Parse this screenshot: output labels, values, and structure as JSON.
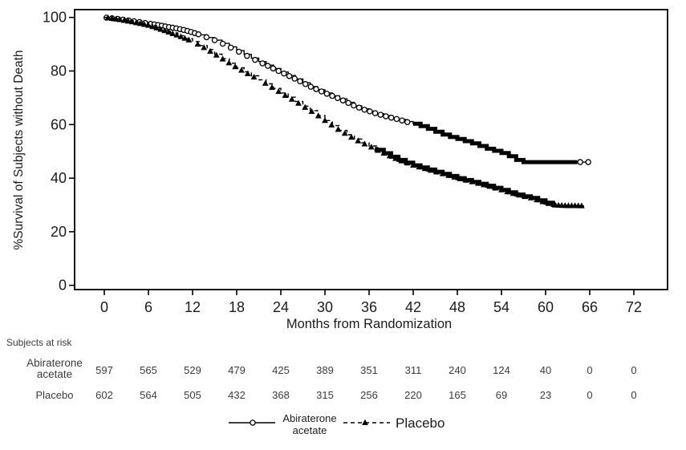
{
  "chart_data": {
    "type": "line",
    "subtype": "kaplan-meier-survival",
    "title": "",
    "xlabel": "Months from Randomization",
    "ylabel": "%Survival of Subjects without Death",
    "xlim": [
      0,
      72
    ],
    "ylim": [
      0,
      100
    ],
    "xticks": [
      0,
      6,
      12,
      18,
      24,
      30,
      36,
      42,
      48,
      54,
      60,
      66,
      72
    ],
    "yticks": [
      0,
      20,
      40,
      60,
      80,
      100
    ],
    "grid": false,
    "legend_position": "bottom",
    "colors": {
      "stroke": "#000000",
      "background": "#ffffff"
    },
    "series": [
      {
        "name": "Abiraterone acetate",
        "label_lines": [
          "Abiraterone",
          "acetate"
        ],
        "line_style": "solid",
        "marker": "open-circle",
        "points": [
          [
            0,
            100
          ],
          [
            1,
            99.7
          ],
          [
            2,
            99.4
          ],
          [
            3,
            99
          ],
          [
            4,
            98.6
          ],
          [
            5,
            98.2
          ],
          [
            6,
            97.7
          ],
          [
            7,
            97.3
          ],
          [
            8,
            96.8
          ],
          [
            9,
            96.3
          ],
          [
            10,
            95.8
          ],
          [
            11,
            95.2
          ],
          [
            12,
            94.4
          ],
          [
            13,
            93.5
          ],
          [
            14,
            92.5
          ],
          [
            15,
            91.5
          ],
          [
            16,
            90.3
          ],
          [
            17,
            89
          ],
          [
            18,
            87.6
          ],
          [
            19,
            86.2
          ],
          [
            20,
            84.8
          ],
          [
            21,
            83.5
          ],
          [
            22,
            82.2
          ],
          [
            23,
            80.9
          ],
          [
            24,
            79.6
          ],
          [
            25,
            78.3
          ],
          [
            26,
            77
          ],
          [
            27,
            75.6
          ],
          [
            28,
            74.2
          ],
          [
            29,
            73
          ],
          [
            30,
            71.8
          ],
          [
            31,
            70.7
          ],
          [
            32,
            69.6
          ],
          [
            33,
            68.3
          ],
          [
            34,
            67
          ],
          [
            35,
            65.9
          ],
          [
            36,
            65
          ],
          [
            37,
            64.1
          ],
          [
            38,
            63.3
          ],
          [
            39,
            62.6
          ],
          [
            40,
            61.9
          ],
          [
            41,
            61.1
          ],
          [
            42,
            60.3
          ],
          [
            43,
            59.4
          ],
          [
            44,
            58.4
          ],
          [
            45,
            57.3
          ],
          [
            46,
            56.3
          ],
          [
            47,
            55.4
          ],
          [
            48,
            54.6
          ],
          [
            49,
            53.8
          ],
          [
            50,
            53
          ],
          [
            51,
            52
          ],
          [
            52,
            51
          ],
          [
            53,
            50.2
          ],
          [
            54,
            49.4
          ],
          [
            55,
            48.2
          ],
          [
            56,
            46.8
          ],
          [
            57,
            46
          ],
          [
            65.8,
            46
          ]
        ],
        "marker_runs": [
          [
            0.3,
            6.3,
            0.75
          ],
          [
            6.8,
            13,
            0.5
          ],
          [
            13.9,
            20.5,
            1.1
          ],
          [
            21.5,
            41.6,
            0.73
          ],
          [
            64.7,
            64.7,
            1
          ],
          [
            65.8,
            65.8,
            1
          ]
        ],
        "band_runs": [
          [
            42,
            64.3
          ]
        ]
      },
      {
        "name": "Placebo",
        "label_lines": [
          "Placebo"
        ],
        "line_style": "dashed",
        "marker": "filled-triangle",
        "points": [
          [
            0,
            100
          ],
          [
            1,
            99.6
          ],
          [
            2,
            99.2
          ],
          [
            3,
            98.7
          ],
          [
            4,
            98.2
          ],
          [
            5,
            97.6
          ],
          [
            6,
            97
          ],
          [
            7,
            96.1
          ],
          [
            8,
            95.2
          ],
          [
            9,
            94.2
          ],
          [
            10,
            93.2
          ],
          [
            11,
            92.1
          ],
          [
            12,
            91
          ],
          [
            13,
            89.5
          ],
          [
            14,
            88
          ],
          [
            15,
            86.3
          ],
          [
            16,
            84.6
          ],
          [
            17,
            82.9
          ],
          [
            18,
            81.2
          ],
          [
            19,
            79.7
          ],
          [
            20,
            78.2
          ],
          [
            21,
            76.7
          ],
          [
            22,
            75.2
          ],
          [
            23,
            73.5
          ],
          [
            24,
            71.8
          ],
          [
            25,
            70.2
          ],
          [
            26,
            68.6
          ],
          [
            27,
            66.9
          ],
          [
            28,
            65.2
          ],
          [
            29,
            63.4
          ],
          [
            30,
            61.5
          ],
          [
            31,
            59.6
          ],
          [
            32,
            57.8
          ],
          [
            33,
            56.2
          ],
          [
            34,
            54.6
          ],
          [
            35,
            53.2
          ],
          [
            36,
            52
          ],
          [
            37,
            50.6
          ],
          [
            38,
            49.3
          ],
          [
            39,
            48
          ],
          [
            40,
            46.8
          ],
          [
            41,
            45.8
          ],
          [
            42,
            44.8
          ],
          [
            43,
            44
          ],
          [
            44,
            43.2
          ],
          [
            45,
            42.4
          ],
          [
            46,
            41.6
          ],
          [
            47,
            40.8
          ],
          [
            48,
            40
          ],
          [
            49,
            39.3
          ],
          [
            50,
            38.6
          ],
          [
            51,
            37.9
          ],
          [
            52,
            37.2
          ],
          [
            53,
            36.4
          ],
          [
            54,
            35.6
          ],
          [
            55,
            34.7
          ],
          [
            56,
            33.9
          ],
          [
            57,
            33.2
          ],
          [
            58,
            32.6
          ],
          [
            59,
            31.7
          ],
          [
            60,
            30.8
          ],
          [
            61,
            30
          ],
          [
            62,
            29.8
          ],
          [
            63,
            29.7
          ],
          [
            64,
            29.7
          ],
          [
            65.4,
            29.6
          ]
        ],
        "marker_runs": [
          [
            0.5,
            12,
            0.55
          ],
          [
            12.7,
            21,
            0.85
          ],
          [
            21.9,
            36.5,
            0.9
          ],
          [
            37.2,
            60.8,
            0.8
          ],
          [
            61.3,
            65.3,
            0.45
          ]
        ],
        "band_runs": [
          [
            36.8,
            61.2
          ]
        ]
      }
    ],
    "risk_table": {
      "title": "Subjects at risk",
      "months": [
        0,
        6,
        12,
        18,
        24,
        30,
        36,
        42,
        48,
        54,
        60,
        66,
        72
      ],
      "rows": [
        {
          "label": "Abiraterone acetate",
          "label_lines": [
            "Abiraterone",
            "acetate"
          ],
          "values": [
            597,
            565,
            529,
            479,
            425,
            389,
            351,
            311,
            240,
            124,
            40,
            0,
            0
          ]
        },
        {
          "label": "Placebo",
          "label_lines": [
            "Placebo"
          ],
          "values": [
            602,
            564,
            505,
            432,
            368,
            315,
            256,
            220,
            165,
            69,
            23,
            0,
            0
          ]
        }
      ]
    },
    "legend": {
      "entries": [
        {
          "label": "Abiraterone acetate",
          "label_lines": [
            "Abiraterone",
            "acetate"
          ],
          "line_style": "solid",
          "marker": "open-circle"
        },
        {
          "label": "Placebo",
          "label_lines": [
            "Placebo"
          ],
          "line_style": "dashed",
          "marker": "filled-triangle"
        }
      ]
    }
  }
}
